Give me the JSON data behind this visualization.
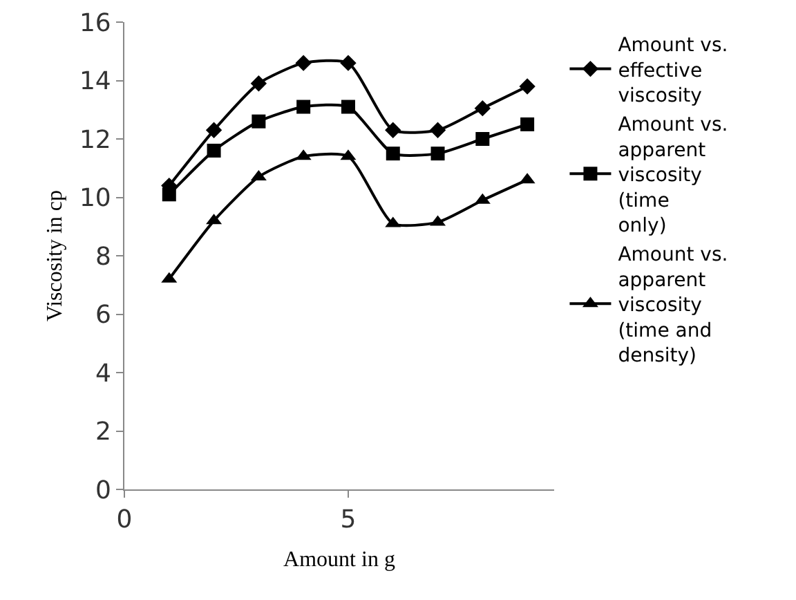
{
  "chart_data": {
    "type": "line",
    "xlabel": "Amount in g",
    "ylabel": "Viscosity in cp",
    "x": [
      1,
      2,
      3,
      4,
      5,
      6,
      7,
      8,
      9
    ],
    "xlim": [
      0,
      9.6
    ],
    "xticks": [
      0,
      5
    ],
    "ylim": [
      0,
      16
    ],
    "yticks": [
      0,
      2,
      4,
      6,
      8,
      10,
      12,
      14,
      16
    ],
    "grid": false,
    "legend": "right",
    "series": [
      {
        "name": "Amount vs. effective viscosity",
        "color": "#000000",
        "marker": "diamond",
        "values": [
          10.4,
          12.3,
          13.9,
          14.6,
          14.6,
          12.3,
          12.3,
          13.05,
          13.8
        ]
      },
      {
        "name": "Amount vs. apparent viscosity (time only)",
        "color": "#000000",
        "marker": "square",
        "values": [
          10.1,
          11.6,
          12.6,
          13.1,
          13.1,
          11.5,
          11.5,
          12.0,
          12.5
        ]
      },
      {
        "name": "Amount vs. apparent viscosity (time and density)",
        "color": "#000000",
        "marker": "triangle",
        "values": [
          7.2,
          9.2,
          10.7,
          11.4,
          11.4,
          9.1,
          9.15,
          9.9,
          10.6
        ]
      }
    ]
  }
}
